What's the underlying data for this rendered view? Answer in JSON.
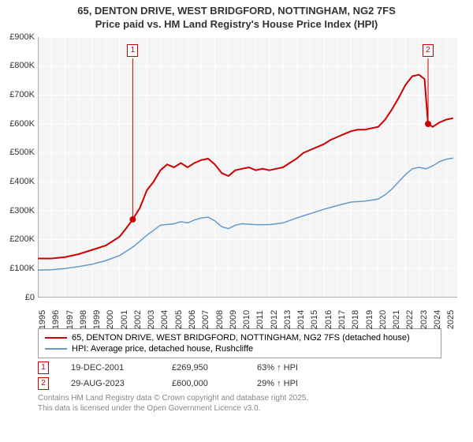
{
  "title": {
    "line1": "65, DENTON DRIVE, WEST BRIDGFORD, NOTTINGHAM, NG2 7FS",
    "line2": "Price paid vs. HM Land Registry's House Price Index (HPI)"
  },
  "chart": {
    "type": "line",
    "background_color": "#ffffff",
    "plot_background_color": "#f5f5f5",
    "grid_color": "#ffffff",
    "axis_color": "#666666",
    "font_color": "#333333",
    "label_fontsize": 11,
    "x": {
      "min": 1995,
      "max": 2025.8,
      "ticks": [
        1995,
        1996,
        1997,
        1998,
        1999,
        2000,
        2001,
        2002,
        2003,
        2004,
        2005,
        2006,
        2007,
        2008,
        2009,
        2010,
        2011,
        2012,
        2013,
        2014,
        2015,
        2016,
        2017,
        2018,
        2019,
        2020,
        2021,
        2022,
        2023,
        2024,
        2025
      ]
    },
    "y": {
      "min": 0,
      "max": 900000,
      "tick_step": 100000,
      "tick_prefix": "£",
      "tick_suffix": "K",
      "tick_divisor": 1000
    },
    "series": [
      {
        "name": "price_paid",
        "label": "65, DENTON DRIVE, WEST BRIDGFORD, NOTTINGHAM, NG2 7FS (detached house)",
        "color": "#cc0000",
        "line_width": 2,
        "points": [
          [
            1995,
            135000
          ],
          [
            1996,
            135000
          ],
          [
            1997,
            140000
          ],
          [
            1998,
            150000
          ],
          [
            1999,
            165000
          ],
          [
            2000,
            180000
          ],
          [
            2001,
            210000
          ],
          [
            2001.5,
            240000
          ],
          [
            2001.97,
            269950
          ],
          [
            2002.5,
            310000
          ],
          [
            2003,
            370000
          ],
          [
            2003.5,
            400000
          ],
          [
            2004,
            440000
          ],
          [
            2004.5,
            460000
          ],
          [
            2005,
            450000
          ],
          [
            2005.5,
            465000
          ],
          [
            2006,
            450000
          ],
          [
            2006.5,
            465000
          ],
          [
            2007,
            475000
          ],
          [
            2007.5,
            480000
          ],
          [
            2008,
            460000
          ],
          [
            2008.5,
            430000
          ],
          [
            2009,
            420000
          ],
          [
            2009.5,
            440000
          ],
          [
            2010,
            445000
          ],
          [
            2010.5,
            450000
          ],
          [
            2011,
            440000
          ],
          [
            2011.5,
            445000
          ],
          [
            2012,
            440000
          ],
          [
            2012.5,
            445000
          ],
          [
            2013,
            450000
          ],
          [
            2013.5,
            465000
          ],
          [
            2014,
            480000
          ],
          [
            2014.5,
            500000
          ],
          [
            2015,
            510000
          ],
          [
            2015.5,
            520000
          ],
          [
            2016,
            530000
          ],
          [
            2016.5,
            545000
          ],
          [
            2017,
            555000
          ],
          [
            2017.5,
            565000
          ],
          [
            2018,
            575000
          ],
          [
            2018.5,
            580000
          ],
          [
            2019,
            580000
          ],
          [
            2019.5,
            585000
          ],
          [
            2020,
            590000
          ],
          [
            2020.5,
            615000
          ],
          [
            2021,
            650000
          ],
          [
            2021.5,
            690000
          ],
          [
            2022,
            735000
          ],
          [
            2022.5,
            765000
          ],
          [
            2023,
            770000
          ],
          [
            2023.4,
            755000
          ],
          [
            2023.66,
            600000
          ],
          [
            2024,
            590000
          ],
          [
            2024.5,
            605000
          ],
          [
            2025,
            615000
          ],
          [
            2025.5,
            620000
          ]
        ]
      },
      {
        "name": "hpi",
        "label": "HPI: Average price, detached house, Rushcliffe",
        "color": "#6699cc",
        "line_width": 1.5,
        "points": [
          [
            1995,
            95000
          ],
          [
            1996,
            96000
          ],
          [
            1997,
            100000
          ],
          [
            1998,
            107000
          ],
          [
            1999,
            115000
          ],
          [
            2000,
            128000
          ],
          [
            2001,
            145000
          ],
          [
            2002,
            175000
          ],
          [
            2003,
            215000
          ],
          [
            2004,
            250000
          ],
          [
            2005,
            255000
          ],
          [
            2005.5,
            262000
          ],
          [
            2006,
            258000
          ],
          [
            2006.5,
            268000
          ],
          [
            2007,
            275000
          ],
          [
            2007.5,
            278000
          ],
          [
            2008,
            265000
          ],
          [
            2008.5,
            245000
          ],
          [
            2009,
            238000
          ],
          [
            2009.5,
            250000
          ],
          [
            2010,
            255000
          ],
          [
            2011,
            252000
          ],
          [
            2012,
            252000
          ],
          [
            2013,
            258000
          ],
          [
            2014,
            275000
          ],
          [
            2015,
            290000
          ],
          [
            2016,
            305000
          ],
          [
            2017,
            318000
          ],
          [
            2018,
            330000
          ],
          [
            2019,
            333000
          ],
          [
            2020,
            340000
          ],
          [
            2020.5,
            355000
          ],
          [
            2021,
            375000
          ],
          [
            2021.5,
            400000
          ],
          [
            2022,
            425000
          ],
          [
            2022.5,
            445000
          ],
          [
            2023,
            450000
          ],
          [
            2023.5,
            445000
          ],
          [
            2024,
            455000
          ],
          [
            2024.5,
            470000
          ],
          [
            2025,
            478000
          ],
          [
            2025.5,
            482000
          ]
        ]
      }
    ],
    "sale_markers": [
      {
        "n": "1",
        "x": 2001.97,
        "y_top": 870000
      },
      {
        "n": "2",
        "x": 2023.66,
        "y_top": 870000
      }
    ],
    "sale_marker_color": "#cc0000",
    "sale_line_color": "#cc0000",
    "sale_dot_color": "#cc0000",
    "sale_dot_radius": 4
  },
  "legend": {
    "border_color": "#999999"
  },
  "sales": [
    {
      "n": "1",
      "date": "19-DEC-2001",
      "price": "£269,950",
      "delta": "63% ↑ HPI"
    },
    {
      "n": "2",
      "date": "29-AUG-2023",
      "price": "£600,000",
      "delta": "29% ↑ HPI"
    }
  ],
  "footer": {
    "line1": "Contains HM Land Registry data © Crown copyright and database right 2025.",
    "line2": "This data is licensed under the Open Government Licence v3.0."
  }
}
